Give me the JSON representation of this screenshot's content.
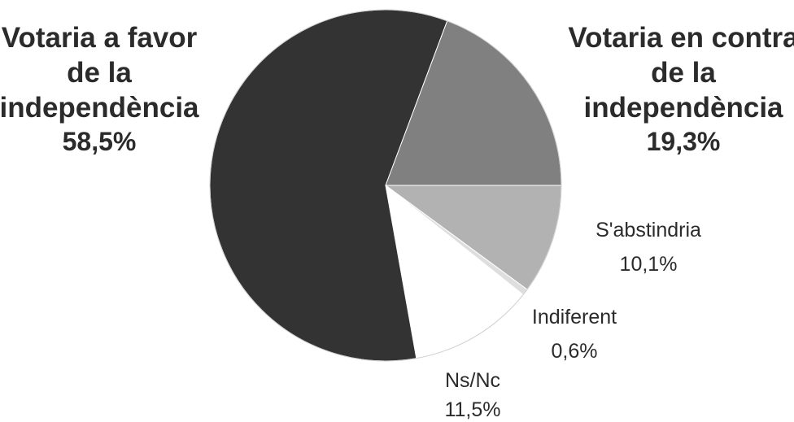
{
  "chart_data": {
    "type": "pie",
    "title": "",
    "start_angle_deg": 0,
    "direction": "clockwise",
    "slices": [
      {
        "label": [
          "S'abstindria"
        ],
        "value_text": "10,1%",
        "value": 10.1,
        "color": "#b2b2b2"
      },
      {
        "label": [
          "Indiferent"
        ],
        "value_text": "0,6%",
        "value": 0.6,
        "color": "#dedede"
      },
      {
        "label": [
          "Ns/Nc"
        ],
        "value_text": "11,5%",
        "value": 11.5,
        "color": "#ffffff"
      },
      {
        "label": [
          "Votaria a favor",
          "de la",
          "independència"
        ],
        "value_text": "58,5%",
        "value": 58.5,
        "color": "#333333"
      },
      {
        "label": [
          "Votaria en contra",
          "de la",
          "independència"
        ],
        "value_text": "19,3%",
        "value": 19.3,
        "color": "#808080"
      }
    ]
  }
}
